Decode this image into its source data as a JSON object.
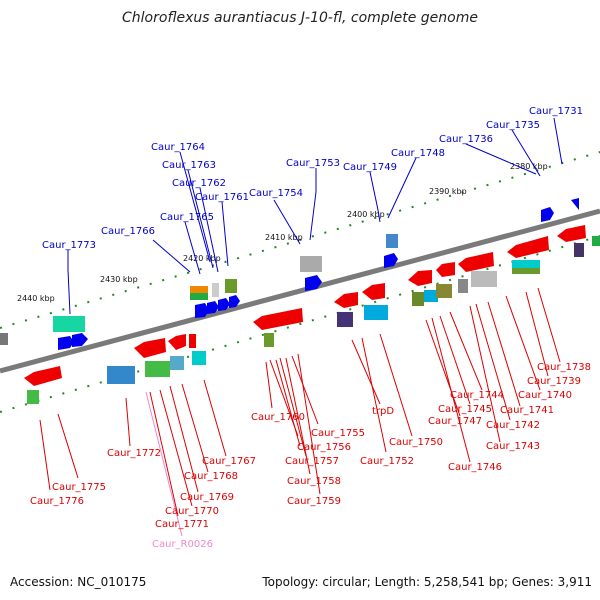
{
  "title": "Chloroflexus aurantiacus J-10-fl, complete genome",
  "footer": {
    "accession": "Accession: NC_010175",
    "summary": "Topology: circular; Length: 5,258,541 bp; Genes: 3,911"
  },
  "colors": {
    "top_labels": "#0000cc",
    "bottom_labels": "#dd0000",
    "rna_label": "#ee88cc",
    "backbone": "#7a7a7a",
    "tick_marks": "#228822",
    "forward_genes": "#0000ee",
    "reverse_genes": "#ee0000"
  },
  "scale_labels": [
    "2440 kbp",
    "2430 kbp",
    "2420 kbp",
    "2410 kbp",
    "2400 kbp",
    "2390 kbp",
    "2380 kbp"
  ],
  "top_genes": [
    "Caur_1773",
    "Caur_1766",
    "Caur_1765",
    "Caur_1764",
    "Caur_1763",
    "Caur_1762",
    "Caur_1761",
    "Caur_1754",
    "Caur_1753",
    "Caur_1749",
    "Caur_1748",
    "Caur_1736",
    "Caur_1735",
    "Caur_1731"
  ],
  "bottom_genes": [
    "Caur_1776",
    "Caur_1775",
    "Caur_1772",
    "Caur_R0026",
    "Caur_1771",
    "Caur_1770",
    "Caur_1769",
    "Caur_1768",
    "Caur_1767",
    "Caur_1760",
    "Caur_1755",
    "Caur_1756",
    "Caur_1757",
    "Caur_1758",
    "Caur_1759",
    "trpD",
    "Caur_1752",
    "Caur_1750",
    "Caur_1747",
    "Caur_1746",
    "Caur_1745",
    "Caur_1744",
    "Caur_1743",
    "Caur_1742",
    "Caur_1741",
    "Caur_1740",
    "Caur_1739",
    "Caur_1738"
  ]
}
